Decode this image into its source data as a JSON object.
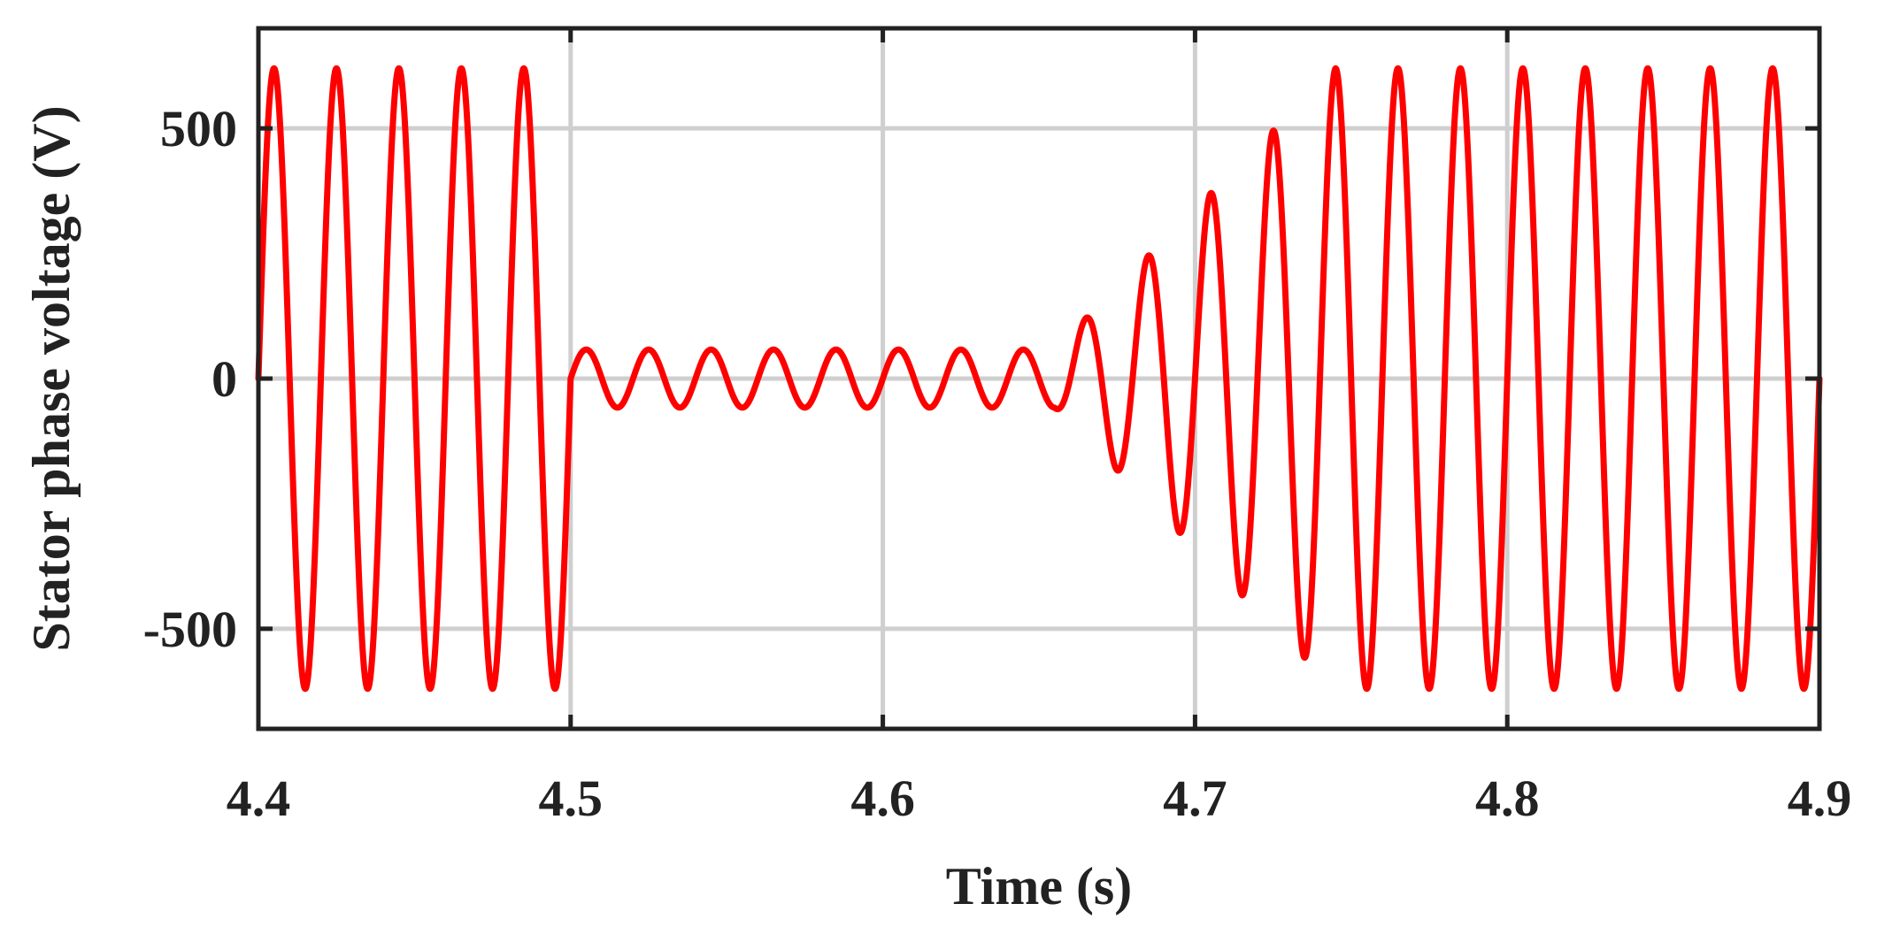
{
  "chart_data": {
    "type": "line",
    "title": "",
    "xlabel": "Time (s)",
    "ylabel": "Stator phase voltage (V)",
    "xlim": [
      4.4,
      4.9
    ],
    "ylim": [
      -700,
      700
    ],
    "xticks": [
      4.4,
      4.5,
      4.6,
      4.7,
      4.8,
      4.9
    ],
    "xtick_labels": [
      "4.4",
      "4.5",
      "4.6",
      "4.7",
      "4.8",
      "4.9"
    ],
    "yticks": [
      -500,
      0,
      500
    ],
    "ytick_labels": [
      "-500",
      "0",
      "500"
    ],
    "grid": true,
    "legend": "none",
    "line_color": "#ff0000",
    "series": [
      {
        "frequency_hz": 50,
        "segments": [
          {
            "t_start": 4.4,
            "t_end": 4.5,
            "amplitude": 620
          },
          {
            "t_start": 4.5,
            "t_end": 4.655,
            "amplitude": 58
          },
          {
            "t_start": 4.655,
            "t_end": 4.745,
            "amplitude_start": 58,
            "amplitude_end": 620
          },
          {
            "t_start": 4.745,
            "t_end": 4.9,
            "amplitude": 620
          }
        ]
      }
    ]
  }
}
